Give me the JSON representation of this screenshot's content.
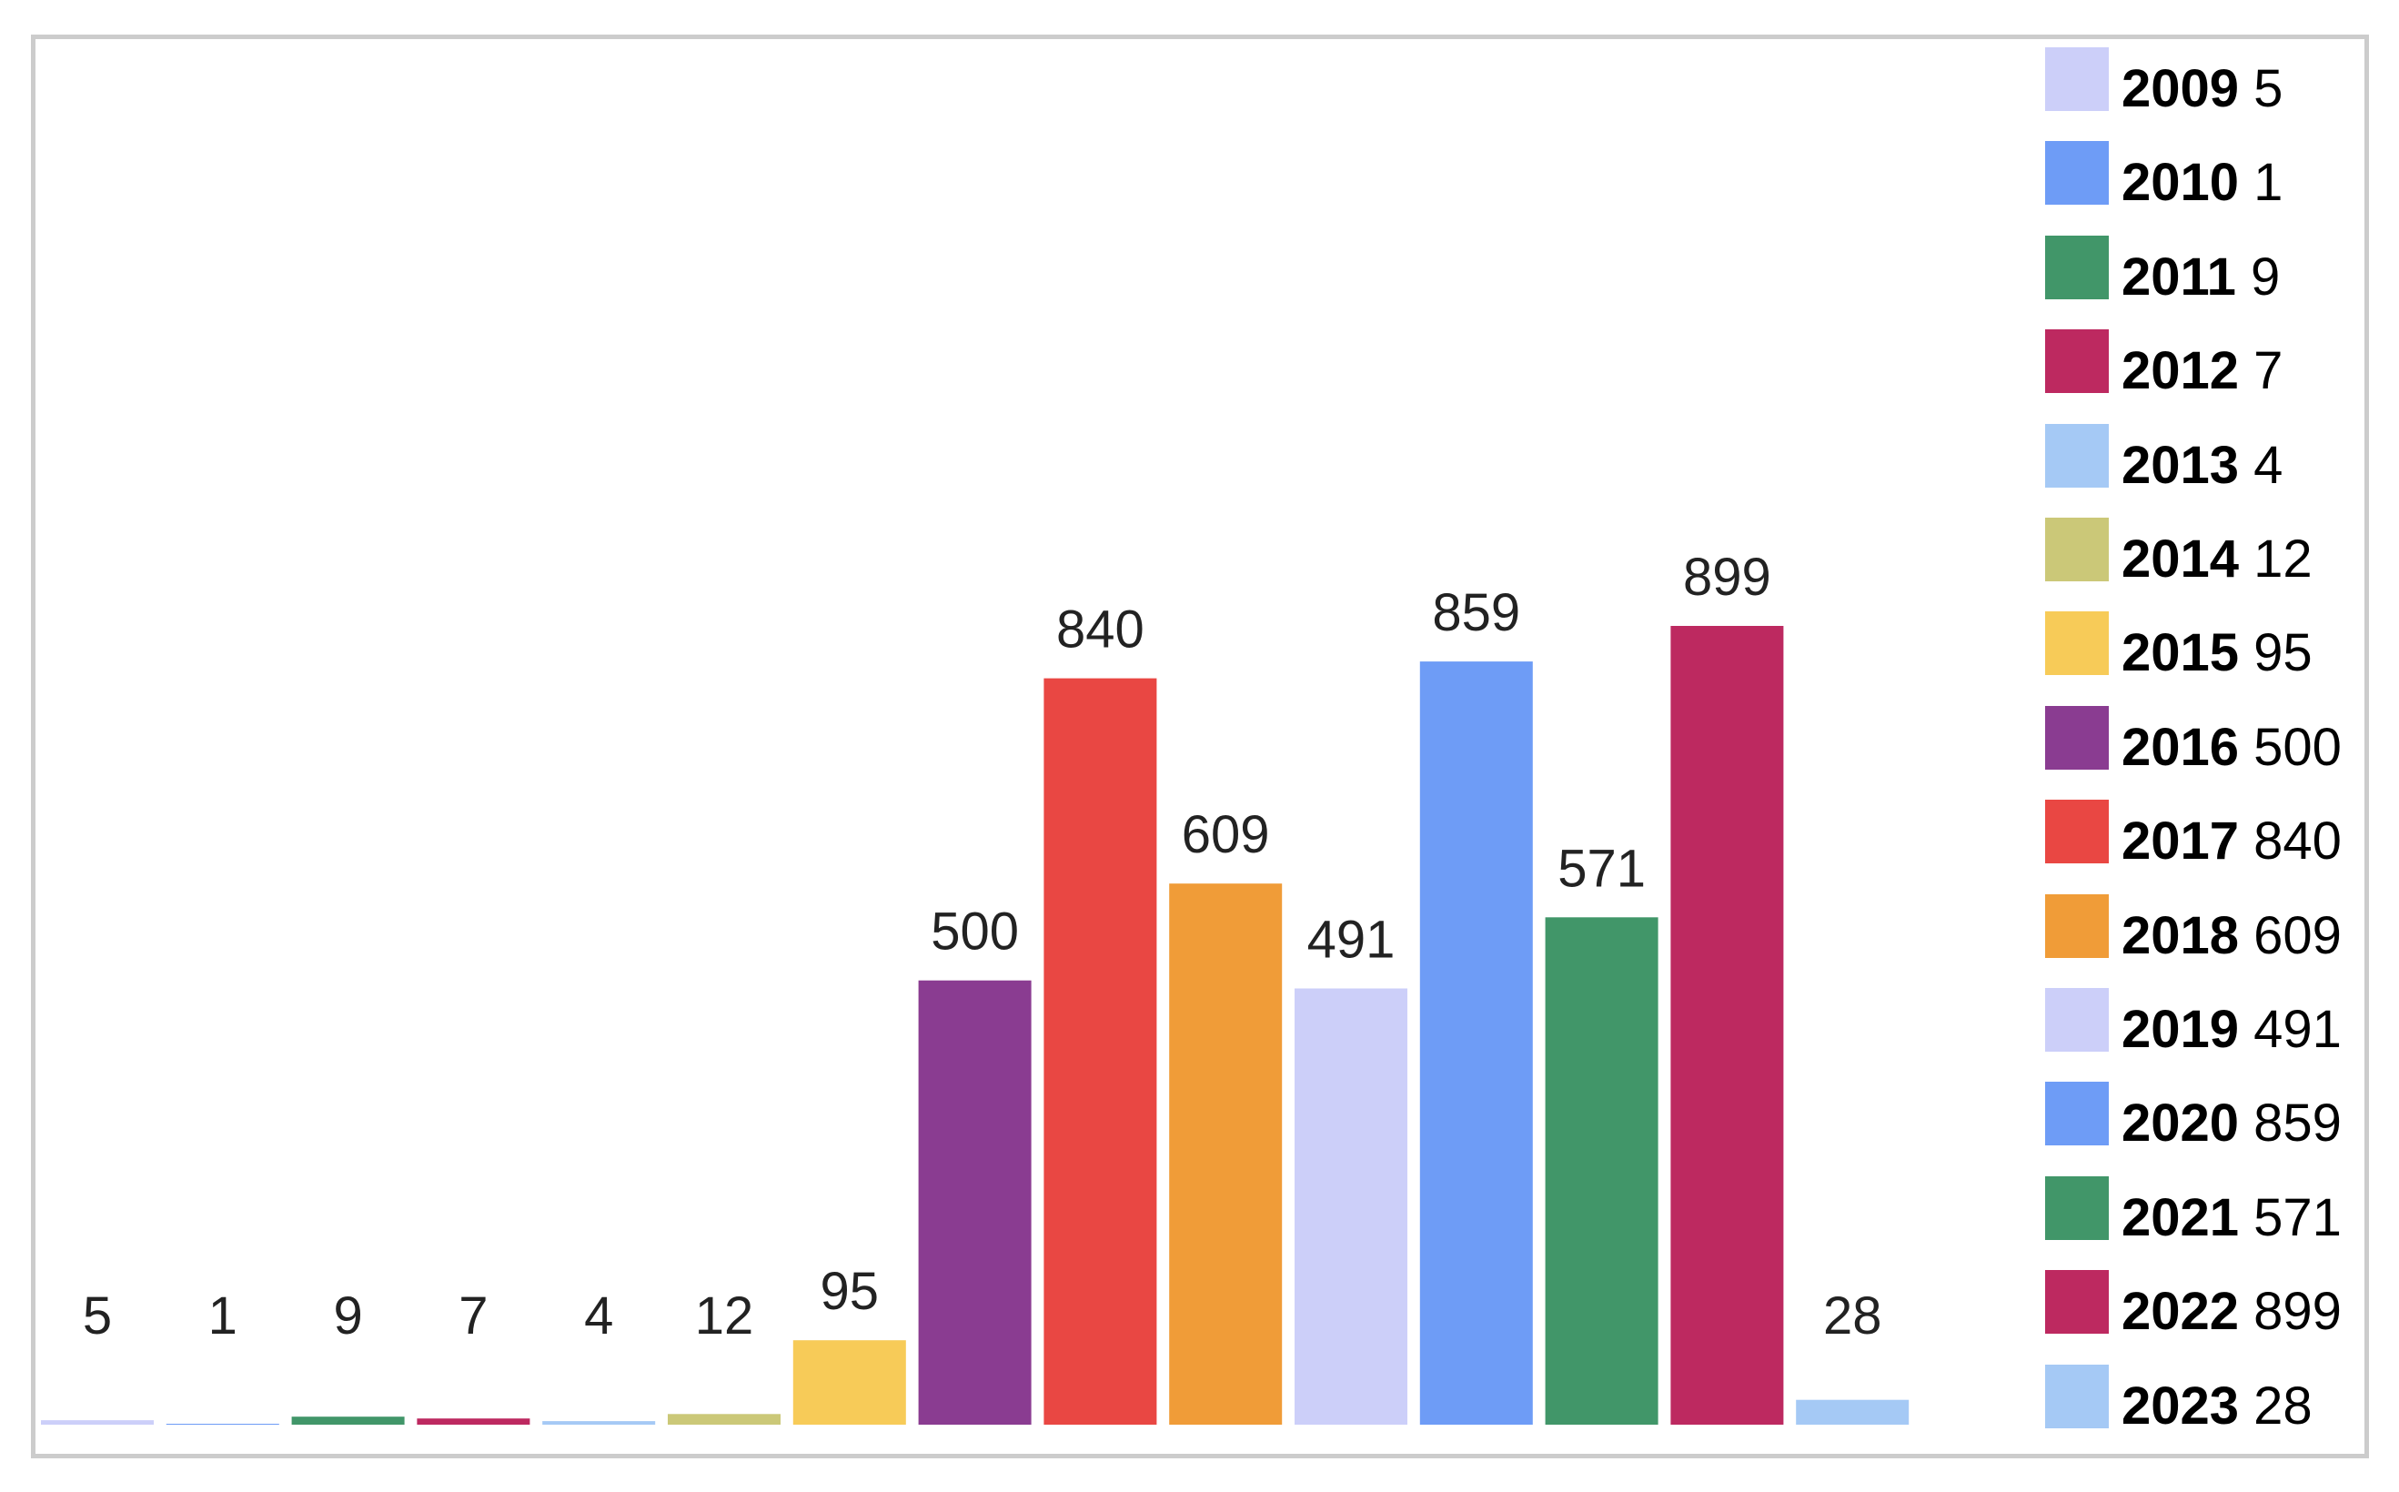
{
  "chart_data": {
    "type": "bar",
    "categories": [
      "2009",
      "2010",
      "2011",
      "2012",
      "2013",
      "2014",
      "2015",
      "2016",
      "2017",
      "2018",
      "2019",
      "2020",
      "2021",
      "2022",
      "2023"
    ],
    "values": [
      5,
      1,
      9,
      7,
      4,
      12,
      95,
      500,
      840,
      609,
      491,
      859,
      571,
      899,
      28
    ],
    "colors": [
      "#cccff9",
      "#6e9cf6",
      "#419669",
      "#bd2960",
      "#a5c9f5",
      "#cbc878",
      "#f7cb58",
      "#8a3c91",
      "#e94743",
      "#f09c38",
      "#cccff9",
      "#6e9cf6",
      "#419669",
      "#bd2960",
      "#a5c9f5"
    ],
    "data_labels": [
      "5",
      "1",
      "9",
      "7",
      "4",
      "12",
      "95",
      "500",
      "840",
      "609",
      "491",
      "859",
      "571",
      "899",
      "28"
    ],
    "legend": [
      {
        "year": "2009",
        "value": "5"
      },
      {
        "year": "2010",
        "value": "1"
      },
      {
        "year": "2011",
        "value": "9"
      },
      {
        "year": "2012",
        "value": "7"
      },
      {
        "year": "2013",
        "value": "4"
      },
      {
        "year": "2014",
        "value": "12"
      },
      {
        "year": "2015",
        "value": "95"
      },
      {
        "year": "2016",
        "value": "500"
      },
      {
        "year": "2017",
        "value": "840"
      },
      {
        "year": "2018",
        "value": "609"
      },
      {
        "year": "2019",
        "value": "491"
      },
      {
        "year": "2020",
        "value": "859"
      },
      {
        "year": "2021",
        "value": "571"
      },
      {
        "year": "2022",
        "value": "899"
      },
      {
        "year": "2023",
        "value": "28"
      }
    ],
    "legend_position": "right",
    "ylim": [
      0,
      950
    ],
    "grid": false,
    "title": "",
    "xlabel": "",
    "ylabel": ""
  }
}
